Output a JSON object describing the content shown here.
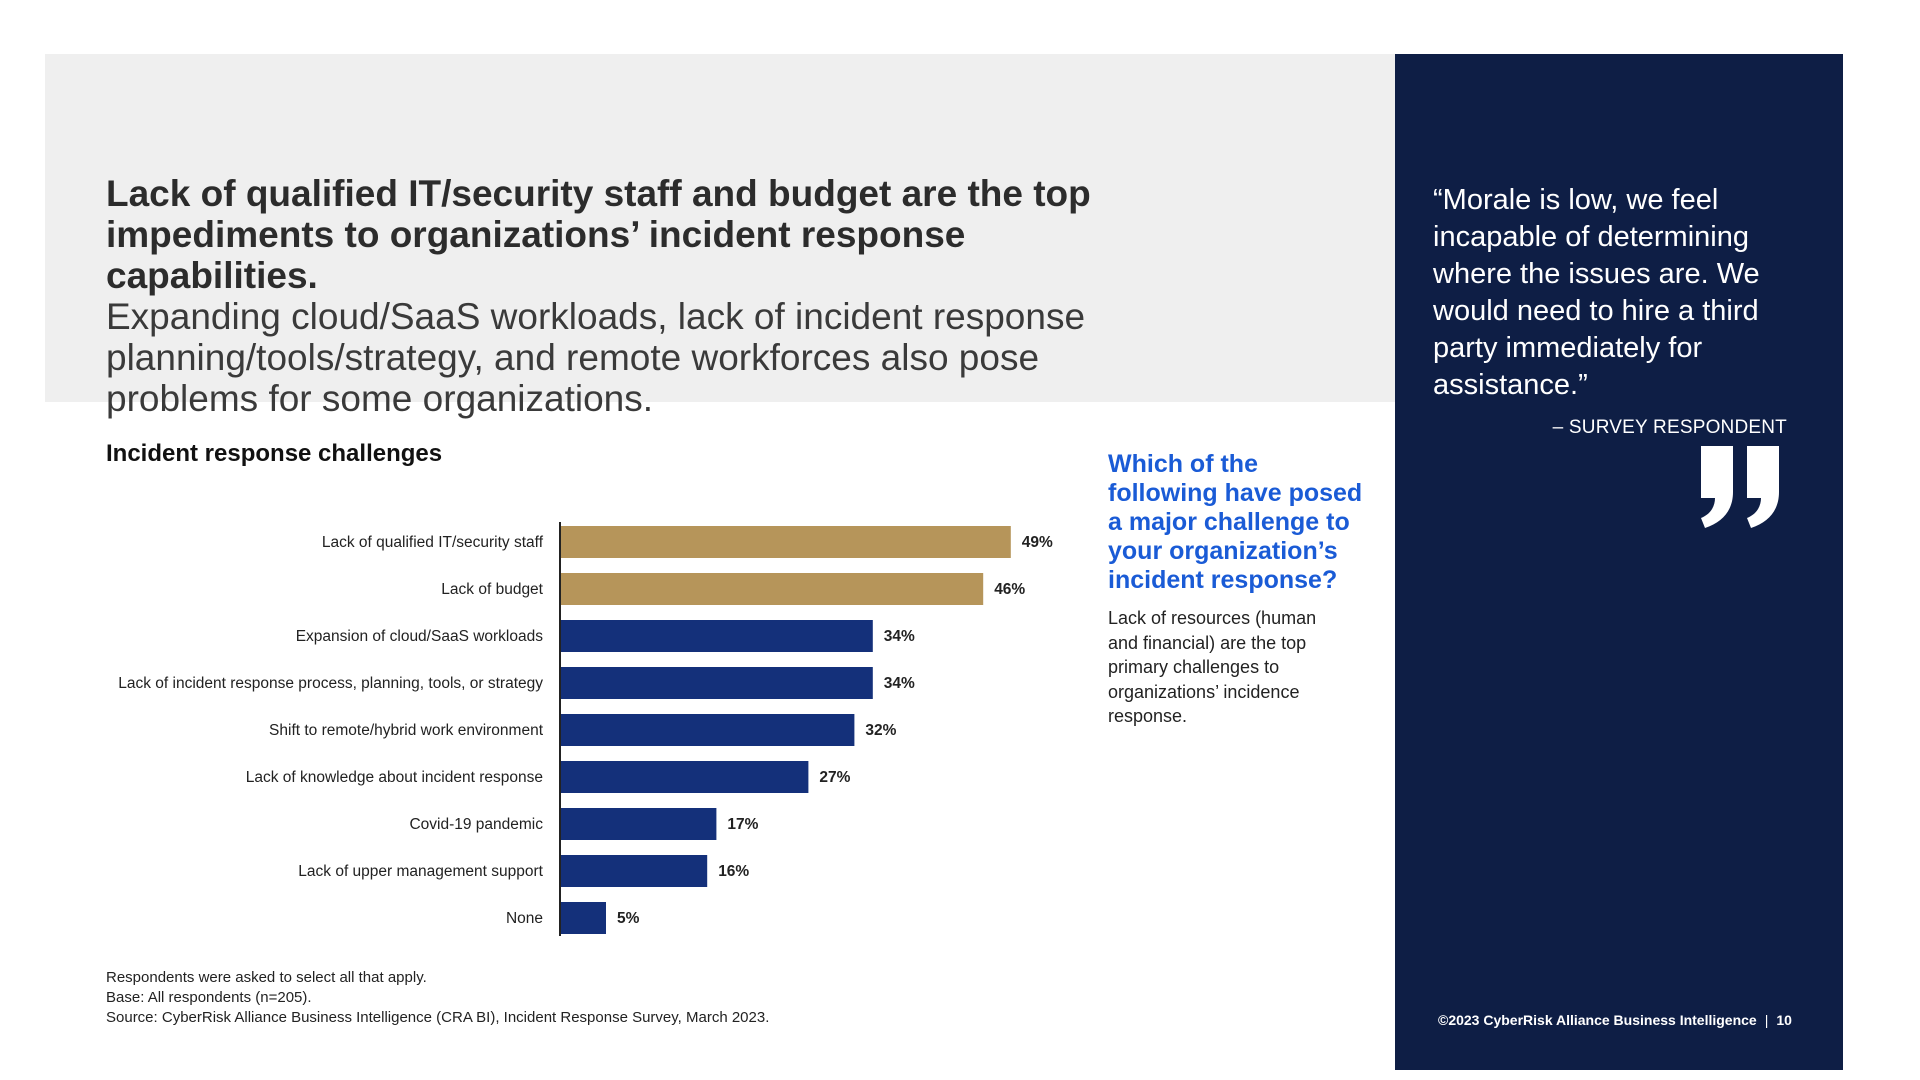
{
  "headline": {
    "bold_line1": "Lack of qualified IT/security staff and budget are the top",
    "bold_line2": "impediments to organizations’ incident response capabilities.",
    "light_line1": "Expanding cloud/SaaS workloads, lack of incident response",
    "light_line2": "planning/tools/strategy, and remote workforces also pose",
    "light_line3": "problems for some organizations."
  },
  "chart_data": {
    "type": "bar",
    "orientation": "horizontal",
    "title": "Incident response challenges",
    "categories": [
      "Lack of qualified IT/security staff",
      "Lack of budget",
      "Expansion of cloud/SaaS workloads",
      "Lack of incident response process, planning, tools, or strategy",
      "Shift to remote/hybrid work environment",
      "Lack of knowledge about incident response",
      "Covid-19 pandemic",
      "Lack of upper management support",
      "None"
    ],
    "values": [
      49,
      46,
      34,
      34,
      32,
      27,
      17,
      16,
      5
    ],
    "value_labels": [
      "49%",
      "46%",
      "34%",
      "34%",
      "32%",
      "27%",
      "17%",
      "16%",
      "5%"
    ],
    "highlight_count": 2,
    "colors": {
      "highlight": "#b6955a",
      "default": "#14307a"
    },
    "unit": "%",
    "xlim": [
      0,
      100
    ]
  },
  "footnotes": {
    "line1": "Respondents were asked to select all that apply.",
    "line2": "Base: All respondents (n=205).",
    "line3": "Source: CyberRisk Alliance Business Intelligence (CRA BI), Incident Response Survey, March 2023."
  },
  "callout": {
    "question": "Which of the following have posed a major challenge to your organization’s incident response?",
    "answer": "Lack of resources (human and financial) are the top primary challenges to organizations’ incidence response."
  },
  "sidebar": {
    "quote": "“Morale is low, we feel\n incapable of determining\n where the issues are. We\n would need to hire a third\n party immediately for\n assistance.”",
    "attribution": "– SURVEY RESPONDENT",
    "quote_icon": "closing-quote-icon",
    "copyright": "©2023 CyberRisk Alliance Business Intelligence",
    "page_number": "10",
    "background": "#0e1e45"
  }
}
